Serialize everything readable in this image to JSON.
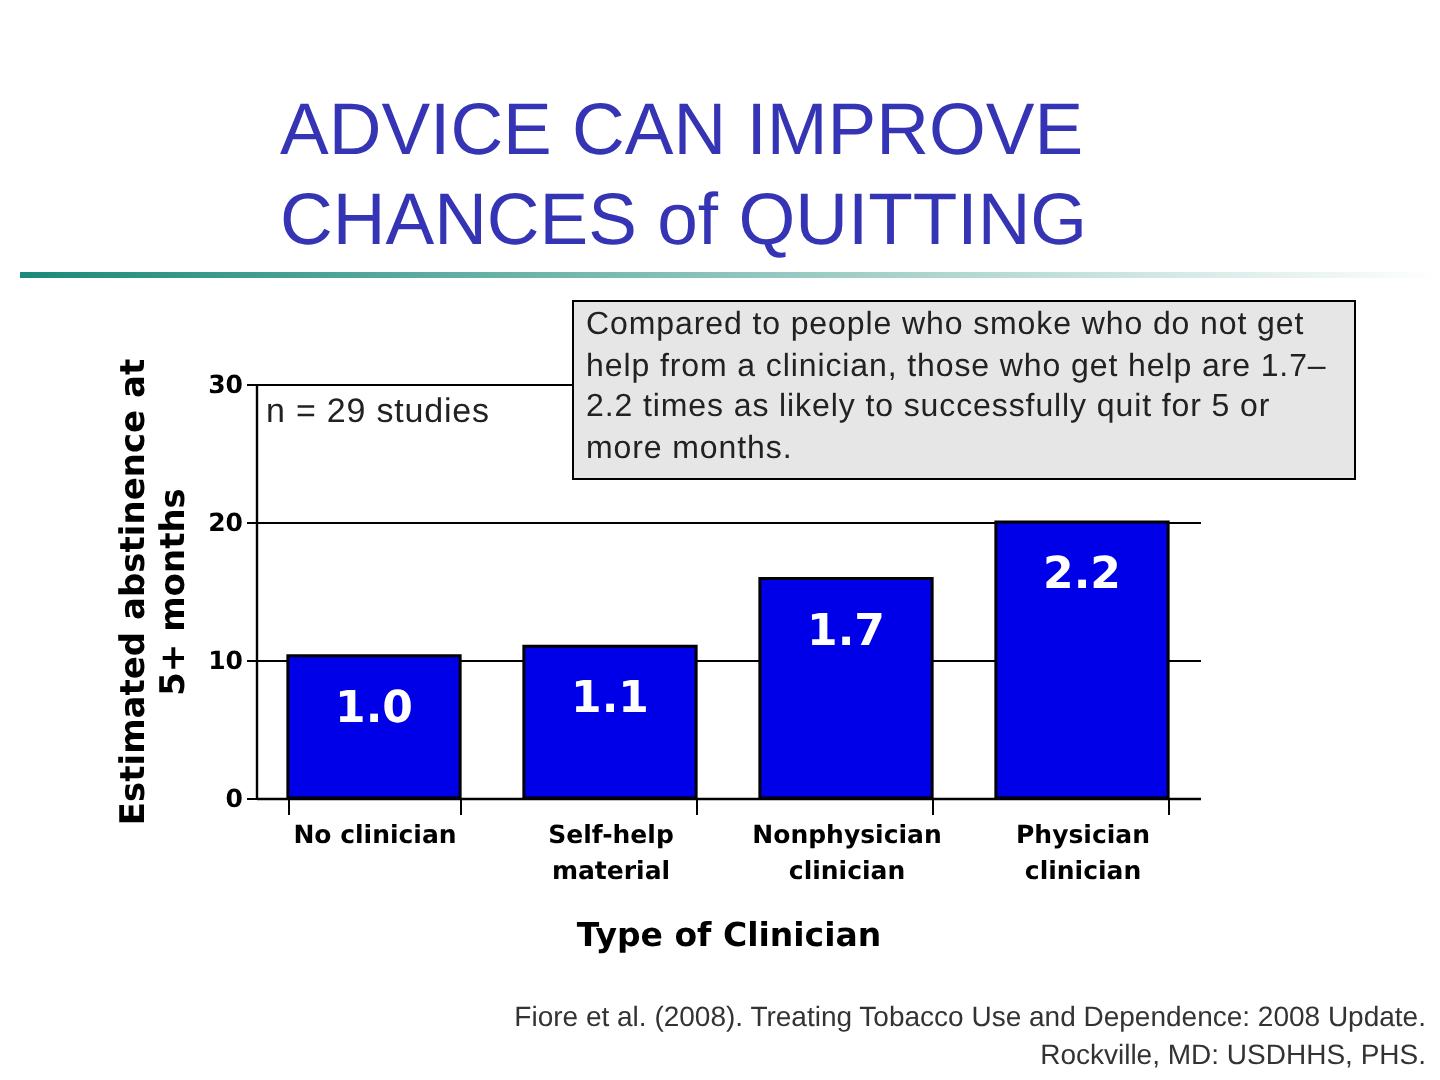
{
  "chart_data": {
    "type": "bar",
    "title": "ADVICE CAN IMPROVE CHANCES of QUITTING",
    "xlabel": "Type of Clinician",
    "ylabel": "Estimated abstinence at 5+ months",
    "categories": [
      "No clinician",
      "Self-help material",
      "Nonphysician clinician",
      "Physician clinician"
    ],
    "values": [
      10.3,
      11.0,
      15.9,
      20.0
    ],
    "color": "#0000e8",
    "ylim": [
      0,
      30
    ],
    "yticks": [
      0,
      10,
      20,
      30
    ],
    "grid": "y",
    "annotations": [
      "n = 29 studies",
      "Compared to people who smoke who do not get help from a clinician, those who get help are 1.7–2.2 times as likely to successfully quit for 5 or more months.",
      "1.0",
      "1.1",
      "1.7",
      "2.2",
      "Fiore et al. (2008). Treating Tobacco Use and Dependence: 2008 Update. Rockville, MD: USDHHS, PHS."
    ]
  }
}
